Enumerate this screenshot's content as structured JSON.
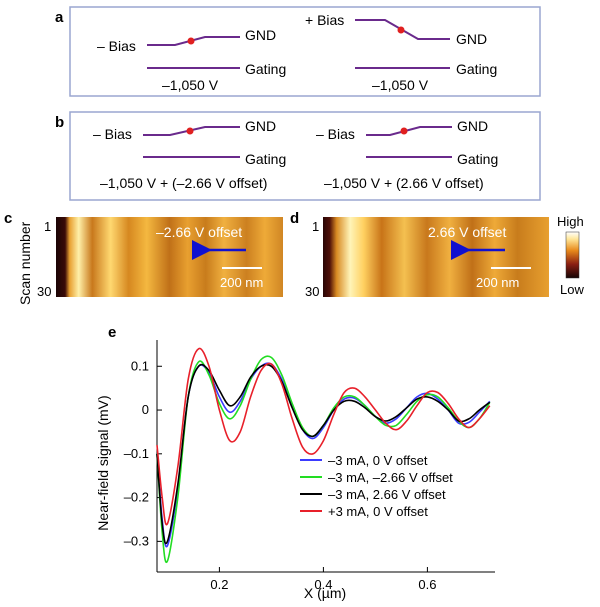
{
  "panel_labels": {
    "a": "a",
    "b": "b",
    "c": "c",
    "d": "d",
    "e": "e"
  },
  "panel_a": {
    "left": {
      "bias": "– Bias",
      "gnd": "GND",
      "gating": "Gating",
      "voltage": "–1,050 V"
    },
    "right": {
      "bias": "+ Bias",
      "gnd": "GND",
      "gating": "Gating",
      "voltage": "–1,050 V"
    }
  },
  "panel_b": {
    "left": {
      "bias": "– Bias",
      "gnd": "GND",
      "gating": "Gating",
      "voltage": "–1,050 V + (–2.66 V offset)"
    },
    "right": {
      "bias": "– Bias",
      "gnd": "GND",
      "gating": "Gating",
      "voltage": "–1,050 V + (2.66 V offset)"
    }
  },
  "panel_c": {
    "y_label": "Scan number",
    "y_top": "1",
    "y_bottom": "30",
    "offset_label": "–2.66 V offset",
    "scale_bar": "200 nm"
  },
  "panel_d": {
    "y_top": "1",
    "y_bottom": "30",
    "offset_label": "2.66 V offset",
    "scale_bar": "200 nm"
  },
  "colorbar": {
    "high": "High",
    "low": "Low"
  },
  "colors": {
    "blue": "#3b3bff",
    "green": "#22dd22",
    "black": "#000000",
    "red": "#e8202a",
    "purple": "#6a2a8c",
    "box": "#9aa6d0",
    "arrow": "#1010d0"
  },
  "chart_data": {
    "type": "line",
    "xlabel": "X (µm)",
    "ylabel": "Near-field signal (mV)",
    "xlim": [
      0.08,
      0.73
    ],
    "ylim": [
      -0.37,
      0.16
    ],
    "xticks": [
      0.2,
      0.4,
      0.6
    ],
    "xtick_labels": [
      "0.2",
      "0.4",
      "0.6"
    ],
    "yticks": [
      0.1,
      0,
      -0.1,
      -0.2,
      -0.3
    ],
    "ytick_labels": [
      "0.1",
      "0",
      "–0.1",
      "–0.2",
      "–0.3"
    ],
    "series": [
      {
        "name": "–3 mA, 0 V offset",
        "color": "#3b3bff",
        "x": [
          0.08,
          0.09,
          0.1,
          0.12,
          0.14,
          0.16,
          0.18,
          0.2,
          0.22,
          0.24,
          0.26,
          0.28,
          0.3,
          0.32,
          0.34,
          0.36,
          0.38,
          0.4,
          0.42,
          0.44,
          0.46,
          0.48,
          0.5,
          0.52,
          0.54,
          0.56,
          0.58,
          0.6,
          0.62,
          0.64,
          0.66,
          0.68,
          0.7,
          0.72
        ],
        "y": [
          -0.1,
          -0.25,
          -0.31,
          -0.18,
          0.03,
          0.1,
          0.085,
          0.03,
          -0.005,
          0.02,
          0.07,
          0.1,
          0.105,
          0.07,
          0.01,
          -0.045,
          -0.065,
          -0.04,
          0,
          0.025,
          0.027,
          0.01,
          -0.015,
          -0.03,
          -0.02,
          0.005,
          0.03,
          0.038,
          0.025,
          0,
          -0.03,
          -0.028,
          -0.005,
          0.02
        ]
      },
      {
        "name": "–3 mA, –2.66 V offset",
        "color": "#22dd22",
        "x": [
          0.08,
          0.09,
          0.1,
          0.12,
          0.14,
          0.16,
          0.18,
          0.2,
          0.22,
          0.24,
          0.26,
          0.28,
          0.3,
          0.32,
          0.34,
          0.36,
          0.38,
          0.4,
          0.42,
          0.44,
          0.46,
          0.48,
          0.5,
          0.52,
          0.54,
          0.56,
          0.58,
          0.6,
          0.62,
          0.64,
          0.66,
          0.68,
          0.7,
          0.72
        ],
        "y": [
          -0.1,
          -0.28,
          -0.345,
          -0.2,
          0.03,
          0.11,
          0.08,
          0.015,
          -0.02,
          0.01,
          0.07,
          0.115,
          0.12,
          0.08,
          0.015,
          -0.04,
          -0.06,
          -0.035,
          0.005,
          0.03,
          0.03,
          0.01,
          -0.015,
          -0.035,
          -0.035,
          -0.01,
          0.02,
          0.035,
          0.03,
          0.005,
          -0.025,
          -0.04,
          -0.02,
          0.018
        ]
      },
      {
        "name": "–3 mA,  2.66 V offset",
        "color": "#000000",
        "x": [
          0.08,
          0.09,
          0.1,
          0.12,
          0.14,
          0.16,
          0.18,
          0.2,
          0.22,
          0.24,
          0.26,
          0.28,
          0.3,
          0.32,
          0.34,
          0.36,
          0.38,
          0.4,
          0.42,
          0.44,
          0.46,
          0.48,
          0.5,
          0.52,
          0.54,
          0.56,
          0.58,
          0.6,
          0.62,
          0.64,
          0.66,
          0.68,
          0.7,
          0.72
        ],
        "y": [
          -0.1,
          -0.26,
          -0.3,
          -0.17,
          0.03,
          0.1,
          0.09,
          0.045,
          0.01,
          0.03,
          0.075,
          0.1,
          0.1,
          0.065,
          0.005,
          -0.045,
          -0.06,
          -0.035,
          0,
          0.02,
          0.02,
          0.005,
          -0.015,
          -0.025,
          -0.015,
          0.005,
          0.025,
          0.03,
          0.02,
          0,
          -0.025,
          -0.02,
          0,
          0.018
        ]
      },
      {
        "name": "+3 mA, 0 V offset",
        "color": "#e8202a",
        "x": [
          0.08,
          0.09,
          0.1,
          0.12,
          0.14,
          0.16,
          0.18,
          0.2,
          0.22,
          0.24,
          0.26,
          0.28,
          0.3,
          0.32,
          0.34,
          0.36,
          0.38,
          0.4,
          0.42,
          0.44,
          0.46,
          0.48,
          0.5,
          0.52,
          0.54,
          0.56,
          0.58,
          0.6,
          0.62,
          0.64,
          0.66,
          0.68,
          0.7,
          0.72
        ],
        "y": [
          -0.08,
          -0.2,
          -0.26,
          -0.13,
          0.07,
          0.14,
          0.1,
          0,
          -0.07,
          -0.05,
          0.03,
          0.09,
          0.105,
          0.06,
          -0.02,
          -0.085,
          -0.1,
          -0.07,
          -0.01,
          0.04,
          0.05,
          0.03,
          0,
          -0.03,
          -0.045,
          -0.025,
          0.01,
          0.04,
          0.04,
          0.015,
          -0.02,
          -0.04,
          -0.02,
          0.01
        ]
      }
    ]
  }
}
